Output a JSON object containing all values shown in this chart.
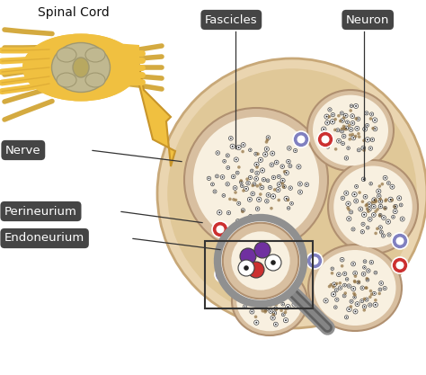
{
  "bg_color": "#ffffff",
  "label_bg": "#454545",
  "label_fg": "#ffffff",
  "labels": {
    "spinal_cord": "Spinal Cord",
    "nerve": "Nerve",
    "fascicles": "Fascicles",
    "neuron": "Neuron",
    "perineurium": "Perineurium",
    "endoneurium": "Endoneurium"
  },
  "nerve_color": "#f0c040",
  "nerve_dark": "#c8952a",
  "nerve_light": "#f5d070",
  "epineurium_color": "#ead5b0",
  "epineurium_edge": "#c8a878",
  "epineurium_inner": "#e0c898",
  "fascicle_fill": "#f8f0e0",
  "perineurium_color": "#d8bfa0",
  "perineurium_edge": "#b09070",
  "axon_fill": "#ffffff",
  "axon_edge": "#404040",
  "neuron_dot": "#202020",
  "connective_dot": "#907040",
  "red_cell": "#cc3030",
  "blue_cell": "#8080c0",
  "purple_cell": "#7030a0",
  "magnifier_rim": "#909090",
  "magnifier_handle": "#888888",
  "magnifier_handle_dark": "#606060",
  "line_color": "#333333",
  "sc_body": "#c8b870",
  "sc_body_edge": "#a09040",
  "sc_inner": "#b8a860",
  "sc_gray": "#c0b890",
  "sc_gray_dark": "#a09870",
  "sc_roots": "#d4aa40"
}
